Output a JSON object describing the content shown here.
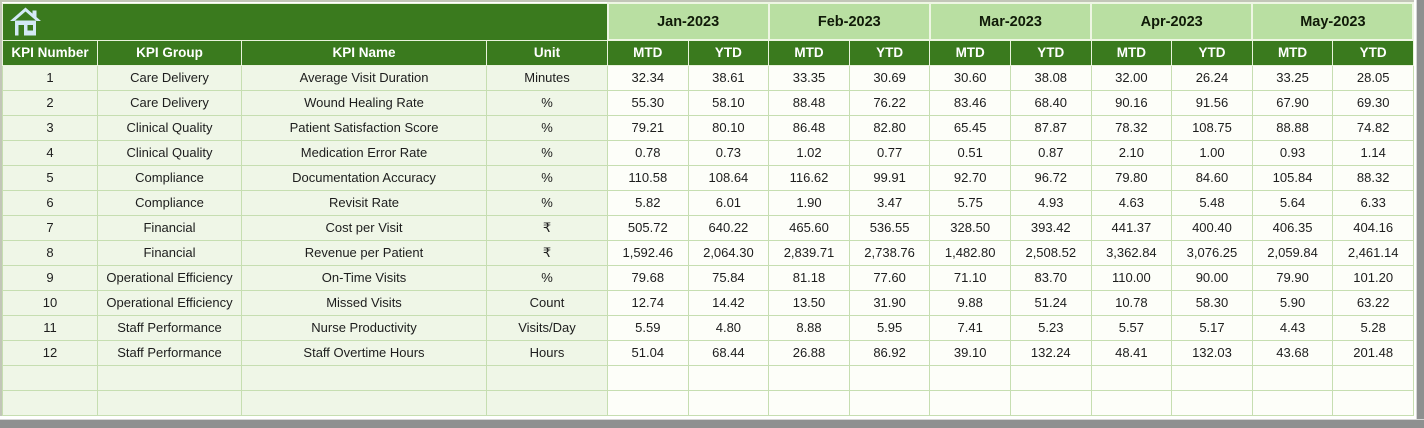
{
  "sheet": {
    "left_headers": [
      "KPI Number",
      "KPI Group",
      "KPI Name",
      "Unit"
    ],
    "months": [
      "Jan-2023",
      "Feb-2023",
      "Mar-2023",
      "Apr-2023",
      "May-2023"
    ],
    "sub_headers": [
      "MTD",
      "YTD"
    ],
    "rows": [
      {
        "number": "1",
        "group": "Care Delivery",
        "name": "Average Visit Duration",
        "unit": "Minutes",
        "values": [
          "32.34",
          "38.61",
          "33.35",
          "30.69",
          "30.60",
          "38.08",
          "32.00",
          "26.24",
          "33.25",
          "28.05"
        ]
      },
      {
        "number": "2",
        "group": "Care Delivery",
        "name": "Wound Healing Rate",
        "unit": "%",
        "values": [
          "55.30",
          "58.10",
          "88.48",
          "76.22",
          "83.46",
          "68.40",
          "90.16",
          "91.56",
          "67.90",
          "69.30"
        ]
      },
      {
        "number": "3",
        "group": "Clinical Quality",
        "name": "Patient Satisfaction Score",
        "unit": "%",
        "values": [
          "79.21",
          "80.10",
          "86.48",
          "82.80",
          "65.45",
          "87.87",
          "78.32",
          "108.75",
          "88.88",
          "74.82"
        ]
      },
      {
        "number": "4",
        "group": "Clinical Quality",
        "name": "Medication Error Rate",
        "unit": "%",
        "values": [
          "0.78",
          "0.73",
          "1.02",
          "0.77",
          "0.51",
          "0.87",
          "2.10",
          "1.00",
          "0.93",
          "1.14"
        ]
      },
      {
        "number": "5",
        "group": "Compliance",
        "name": "Documentation Accuracy",
        "unit": "%",
        "values": [
          "110.58",
          "108.64",
          "116.62",
          "99.91",
          "92.70",
          "96.72",
          "79.80",
          "84.60",
          "105.84",
          "88.32"
        ]
      },
      {
        "number": "6",
        "group": "Compliance",
        "name": "Revisit Rate",
        "unit": "%",
        "values": [
          "5.82",
          "6.01",
          "1.90",
          "3.47",
          "5.75",
          "4.93",
          "4.63",
          "5.48",
          "5.64",
          "6.33"
        ]
      },
      {
        "number": "7",
        "group": "Financial",
        "name": "Cost per Visit",
        "unit": "₹",
        "values": [
          "505.72",
          "640.22",
          "465.60",
          "536.55",
          "328.50",
          "393.42",
          "441.37",
          "400.40",
          "406.35",
          "404.16"
        ]
      },
      {
        "number": "8",
        "group": "Financial",
        "name": "Revenue per Patient",
        "unit": "₹",
        "values": [
          "1,592.46",
          "2,064.30",
          "2,839.71",
          "2,738.76",
          "1,482.80",
          "2,508.52",
          "3,362.84",
          "3,076.25",
          "2,059.84",
          "2,461.14"
        ]
      },
      {
        "number": "9",
        "group": "Operational Efficiency",
        "name": "On-Time Visits",
        "unit": "%",
        "values": [
          "79.68",
          "75.84",
          "81.18",
          "77.60",
          "71.10",
          "83.70",
          "110.00",
          "90.00",
          "79.90",
          "101.20"
        ]
      },
      {
        "number": "10",
        "group": "Operational Efficiency",
        "name": "Missed Visits",
        "unit": "Count",
        "values": [
          "12.74",
          "14.42",
          "13.50",
          "31.90",
          "9.88",
          "51.24",
          "10.78",
          "58.30",
          "5.90",
          "63.22"
        ]
      },
      {
        "number": "11",
        "group": "Staff Performance",
        "name": "Nurse Productivity",
        "unit": "Visits/Day",
        "values": [
          "5.59",
          "4.80",
          "8.88",
          "5.95",
          "7.41",
          "5.23",
          "5.57",
          "5.17",
          "4.43",
          "5.28"
        ]
      },
      {
        "number": "12",
        "group": "Staff Performance",
        "name": "Staff Overtime Hours",
        "unit": "Hours",
        "values": [
          "51.04",
          "68.44",
          "26.88",
          "86.92",
          "39.10",
          "132.24",
          "48.41",
          "132.03",
          "43.68",
          "201.48"
        ]
      }
    ],
    "empty_row_count": 2
  },
  "icons": {
    "corner": "home-icon"
  },
  "colors": {
    "header_green": "#3a7a1e",
    "month_band_green": "#b9dfa2",
    "label_cell_green": "#eff6e7",
    "value_cell": "#fdfef9",
    "grid_line": "#c6deb1",
    "frame_gray": "#8e9090",
    "home_icon_blue": "#d3e9f6"
  }
}
